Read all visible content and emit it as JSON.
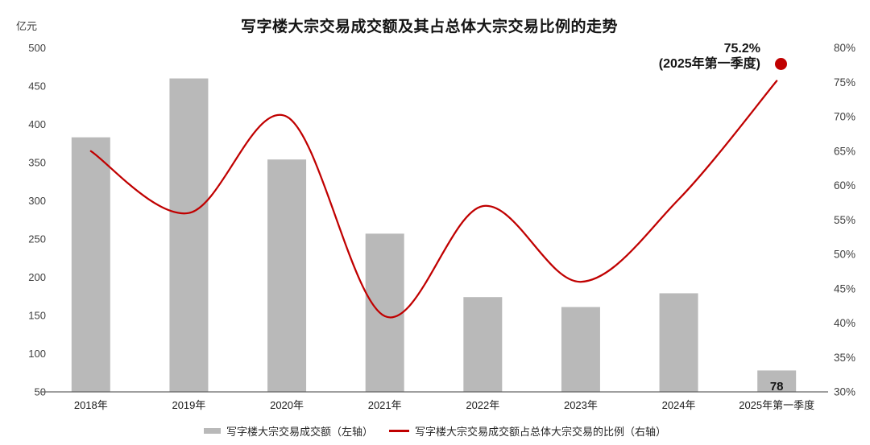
{
  "page": {
    "background": "#ffffff"
  },
  "chart_data": {
    "type": "combo",
    "title": "写字楼大宗交易成交额及其占总体大宗交易比例的走势",
    "categories": [
      "2018年",
      "2019年",
      "2020年",
      "2021年",
      "2022年",
      "2023年",
      "2024年",
      "2025年第一季度"
    ],
    "series": [
      {
        "name": "写字楼大宗交易成交额（左轴）",
        "type": "bar",
        "axis": "left",
        "color": "#b9b9b9",
        "values": [
          383,
          460,
          354,
          257,
          174,
          161,
          179,
          78
        ]
      },
      {
        "name": "写字楼大宗交易成交额占总体大宗交易的比例（右轴）",
        "type": "line",
        "axis": "right",
        "color": "#c00000",
        "values": [
          65,
          56,
          70,
          41,
          57,
          46,
          58,
          75.2
        ]
      }
    ],
    "left_axis": {
      "unit_label": "亿元",
      "min": 50,
      "max": 500,
      "step": 50,
      "ticks": [
        "500",
        "450",
        "400",
        "350",
        "300",
        "250",
        "200",
        "150",
        "100",
        "50"
      ]
    },
    "right_axis": {
      "min": 30,
      "max": 80,
      "step": 5,
      "ticks": [
        "80%",
        "75%",
        "70%",
        "65%",
        "60%",
        "55%",
        "50%",
        "45%",
        "40%",
        "35%",
        "30%"
      ]
    },
    "bar_value_label": {
      "category": "2025年第一季度",
      "text": "78"
    },
    "annotation": {
      "value": "75.2%",
      "period": "(2025年第一季度)",
      "marker": "red-dot",
      "marker_color": "#c00000"
    },
    "legend": [
      {
        "swatch": "bar",
        "color": "#b9b9b9",
        "label": "写字楼大宗交易成交额（左轴）"
      },
      {
        "swatch": "line",
        "color": "#c00000",
        "label": "写字楼大宗交易成交额占总体大宗交易的比例（右轴）"
      }
    ],
    "grid": "off",
    "legend_position": "bottom",
    "text_color": "#3f3f3f",
    "axis_line_color": "#666666"
  }
}
